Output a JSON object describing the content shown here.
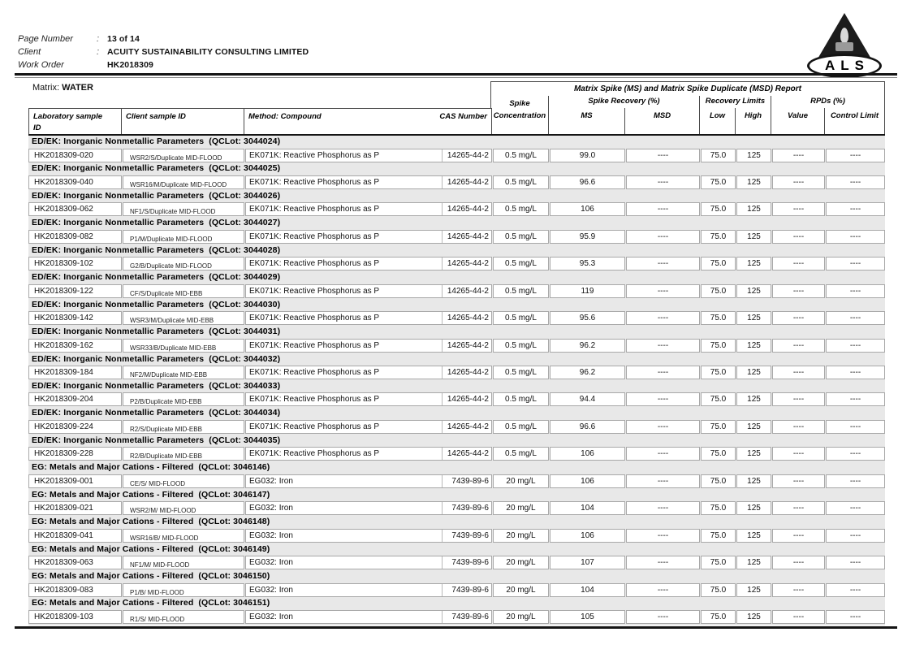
{
  "header": {
    "separator": ":",
    "fields": [
      {
        "label": "Page Number",
        "value": "13 of 14"
      },
      {
        "label": "Client",
        "value": "ACUITY SUSTAINABILITY CONSULTING LIMITED"
      },
      {
        "label": "Work Order",
        "value": "HK2018309"
      }
    ],
    "logo_text": "ALS"
  },
  "matrix": {
    "label": "Matrix:",
    "value": "WATER"
  },
  "table": {
    "banner": "Matrix Spike (MS) and Matrix Spike Duplicate (MSD) Report",
    "columns": {
      "lab_line1": "Laboratory sample",
      "lab_line2": "ID",
      "client": "Client sample ID",
      "method": "Method: Compound",
      "cas": "CAS Number",
      "spike_line1": "Spike",
      "spike_line2": "Concentration",
      "recovery_group": "Spike Recovery (%)",
      "ms": "MS",
      "msd": "MSD",
      "limits_group": "Recovery Limits (%)",
      "low": "Low",
      "high": "High",
      "rpds_group": "RPDs (%)",
      "value": "Value",
      "control_limit": "Control Limit"
    },
    "groups": [
      {
        "section": "ED/EK: Inorganic Nonmetallic Parameters  (QCLot: 3044024)",
        "lab_id": "HK2018309-020",
        "client_id": "WSR2/S/Duplicate MID-FLOOD",
        "method": "EK071K: Reactive Phosphorus as P",
        "cas": "14265-44-2",
        "conc": "0.5 mg/L",
        "ms": "99.0",
        "msd": "----",
        "low": "75.0",
        "high": "125",
        "value": "----",
        "limit": "----"
      },
      {
        "section": "ED/EK: Inorganic Nonmetallic Parameters  (QCLot: 3044025)",
        "lab_id": "HK2018309-040",
        "client_id": "WSR16/M/Duplicate MID-FLOOD",
        "method": "EK071K: Reactive Phosphorus as P",
        "cas": "14265-44-2",
        "conc": "0.5 mg/L",
        "ms": "96.6",
        "msd": "----",
        "low": "75.0",
        "high": "125",
        "value": "----",
        "limit": "----"
      },
      {
        "section": "ED/EK: Inorganic Nonmetallic Parameters  (QCLot: 3044026)",
        "lab_id": "HK2018309-062",
        "client_id": "NF1/S/Duplicate MID-FLOOD",
        "method": "EK071K: Reactive Phosphorus as P",
        "cas": "14265-44-2",
        "conc": "0.5 mg/L",
        "ms": "106",
        "msd": "----",
        "low": "75.0",
        "high": "125",
        "value": "----",
        "limit": "----"
      },
      {
        "section": "ED/EK: Inorganic Nonmetallic Parameters  (QCLot: 3044027)",
        "lab_id": "HK2018309-082",
        "client_id": "P1/M/Duplicate MID-FLOOD",
        "method": "EK071K: Reactive Phosphorus as P",
        "cas": "14265-44-2",
        "conc": "0.5 mg/L",
        "ms": "95.9",
        "msd": "----",
        "low": "75.0",
        "high": "125",
        "value": "----",
        "limit": "----"
      },
      {
        "section": "ED/EK: Inorganic Nonmetallic Parameters  (QCLot: 3044028)",
        "lab_id": "HK2018309-102",
        "client_id": "G2/B/Duplicate MID-FLOOD",
        "method": "EK071K: Reactive Phosphorus as P",
        "cas": "14265-44-2",
        "conc": "0.5 mg/L",
        "ms": "95.3",
        "msd": "----",
        "low": "75.0",
        "high": "125",
        "value": "----",
        "limit": "----"
      },
      {
        "section": "ED/EK: Inorganic Nonmetallic Parameters  (QCLot: 3044029)",
        "lab_id": "HK2018309-122",
        "client_id": "CF/S/Duplicate MID-EBB",
        "method": "EK071K: Reactive Phosphorus as P",
        "cas": "14265-44-2",
        "conc": "0.5 mg/L",
        "ms": "119",
        "msd": "----",
        "low": "75.0",
        "high": "125",
        "value": "----",
        "limit": "----"
      },
      {
        "section": "ED/EK: Inorganic Nonmetallic Parameters  (QCLot: 3044030)",
        "lab_id": "HK2018309-142",
        "client_id": "WSR3/M/Duplicate MID-EBB",
        "method": "EK071K: Reactive Phosphorus as P",
        "cas": "14265-44-2",
        "conc": "0.5 mg/L",
        "ms": "95.6",
        "msd": "----",
        "low": "75.0",
        "high": "125",
        "value": "----",
        "limit": "----"
      },
      {
        "section": "ED/EK: Inorganic Nonmetallic Parameters  (QCLot: 3044031)",
        "lab_id": "HK2018309-162",
        "client_id": "WSR33/B/Duplicate MID-EBB",
        "method": "EK071K: Reactive Phosphorus as P",
        "cas": "14265-44-2",
        "conc": "0.5 mg/L",
        "ms": "96.2",
        "msd": "----",
        "low": "75.0",
        "high": "125",
        "value": "----",
        "limit": "----"
      },
      {
        "section": "ED/EK: Inorganic Nonmetallic Parameters  (QCLot: 3044032)",
        "lab_id": "HK2018309-184",
        "client_id": "NF2/M/Duplicate MID-EBB",
        "method": "EK071K: Reactive Phosphorus as P",
        "cas": "14265-44-2",
        "conc": "0.5 mg/L",
        "ms": "96.2",
        "msd": "----",
        "low": "75.0",
        "high": "125",
        "value": "----",
        "limit": "----"
      },
      {
        "section": "ED/EK: Inorganic Nonmetallic Parameters  (QCLot: 3044033)",
        "lab_id": "HK2018309-204",
        "client_id": "P2/B/Duplicate MID-EBB",
        "method": "EK071K: Reactive Phosphorus as P",
        "cas": "14265-44-2",
        "conc": "0.5 mg/L",
        "ms": "94.4",
        "msd": "----",
        "low": "75.0",
        "high": "125",
        "value": "----",
        "limit": "----"
      },
      {
        "section": "ED/EK: Inorganic Nonmetallic Parameters  (QCLot: 3044034)",
        "lab_id": "HK2018309-224",
        "client_id": "R2/S/Duplicate MID-EBB",
        "method": "EK071K: Reactive Phosphorus as P",
        "cas": "14265-44-2",
        "conc": "0.5 mg/L",
        "ms": "96.6",
        "msd": "----",
        "low": "75.0",
        "high": "125",
        "value": "----",
        "limit": "----"
      },
      {
        "section": "ED/EK: Inorganic Nonmetallic Parameters  (QCLot: 3044035)",
        "lab_id": "HK2018309-228",
        "client_id": "R2/B/Duplicate MID-EBB",
        "method": "EK071K: Reactive Phosphorus as P",
        "cas": "14265-44-2",
        "conc": "0.5 mg/L",
        "ms": "106",
        "msd": "----",
        "low": "75.0",
        "high": "125",
        "value": "----",
        "limit": "----"
      },
      {
        "section": "EG: Metals and Major Cations - Filtered  (QCLot: 3046146)",
        "lab_id": "HK2018309-001",
        "client_id": "CE/S/ MID-FLOOD",
        "method": "EG032: Iron",
        "cas": "7439-89-6",
        "conc": "20 mg/L",
        "ms": "106",
        "msd": "----",
        "low": "75.0",
        "high": "125",
        "value": "----",
        "limit": "----"
      },
      {
        "section": "EG: Metals and Major Cations - Filtered  (QCLot: 3046147)",
        "lab_id": "HK2018309-021",
        "client_id": "WSR2/M/ MID-FLOOD",
        "method": "EG032: Iron",
        "cas": "7439-89-6",
        "conc": "20 mg/L",
        "ms": "104",
        "msd": "----",
        "low": "75.0",
        "high": "125",
        "value": "----",
        "limit": "----"
      },
      {
        "section": "EG: Metals and Major Cations - Filtered  (QCLot: 3046148)",
        "lab_id": "HK2018309-041",
        "client_id": "WSR16/B/ MID-FLOOD",
        "method": "EG032: Iron",
        "cas": "7439-89-6",
        "conc": "20 mg/L",
        "ms": "106",
        "msd": "----",
        "low": "75.0",
        "high": "125",
        "value": "----",
        "limit": "----"
      },
      {
        "section": "EG: Metals and Major Cations - Filtered  (QCLot: 3046149)",
        "lab_id": "HK2018309-063",
        "client_id": "NF1/M/ MID-FLOOD",
        "method": "EG032: Iron",
        "cas": "7439-89-6",
        "conc": "20 mg/L",
        "ms": "107",
        "msd": "----",
        "low": "75.0",
        "high": "125",
        "value": "----",
        "limit": "----"
      },
      {
        "section": "EG: Metals and Major Cations - Filtered  (QCLot: 3046150)",
        "lab_id": "HK2018309-083",
        "client_id": "P1/B/ MID-FLOOD",
        "method": "EG032: Iron",
        "cas": "7439-89-6",
        "conc": "20 mg/L",
        "ms": "104",
        "msd": "----",
        "low": "75.0",
        "high": "125",
        "value": "----",
        "limit": "----"
      },
      {
        "section": "EG: Metals and Major Cations - Filtered  (QCLot: 3046151)",
        "lab_id": "HK2018309-103",
        "client_id": "R1/S/ MID-FLOOD",
        "method": "EG032: Iron",
        "cas": "7439-89-6",
        "conc": "20 mg/L",
        "ms": "105",
        "msd": "----",
        "low": "75.0",
        "high": "125",
        "value": "----",
        "limit": "----"
      }
    ]
  },
  "colors": {
    "body_gray": "#e8e8e8",
    "ink": "#141414",
    "cell_border": "#a8a8a8"
  }
}
